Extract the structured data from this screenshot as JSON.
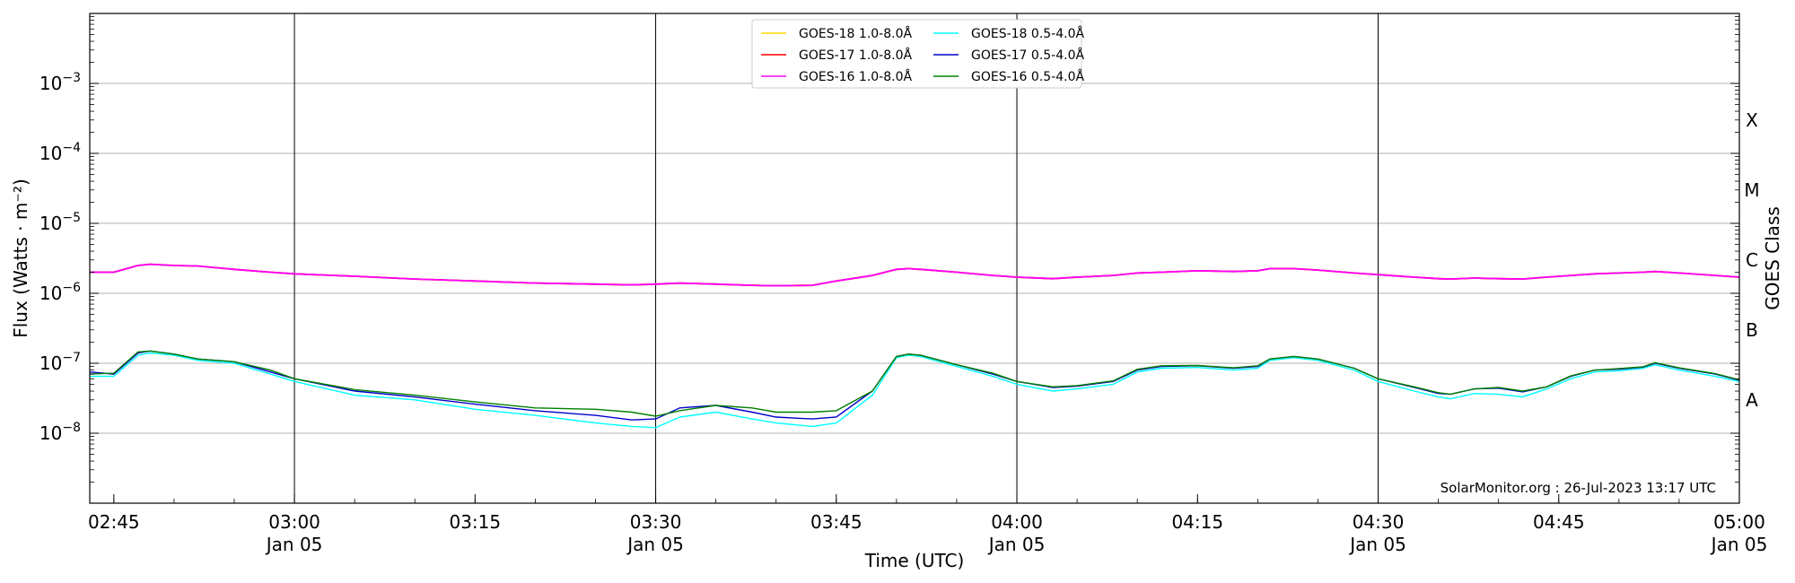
{
  "chart_data": {
    "type": "line",
    "xlabel": "Time (UTC)",
    "ylabel": "Flux (Watts · m⁻²)",
    "right_axis_label": "GOES Class",
    "credit": "SolarMonitor.org : 26-Jul-2023 13:17 UTC",
    "x_range": [
      "02:43",
      "05:00"
    ],
    "y_range": [
      1e-09,
      0.01
    ],
    "y_scale": "log",
    "grid": "horizontal at decades, vertical at half-hours",
    "legend_position": "top-center",
    "x_ticks": [
      {
        "time": "02:45",
        "label": "02:45",
        "sub": ""
      },
      {
        "time": "03:00",
        "label": "03:00",
        "sub": "Jan 05"
      },
      {
        "time": "03:15",
        "label": "03:15",
        "sub": ""
      },
      {
        "time": "03:30",
        "label": "03:30",
        "sub": "Jan 05"
      },
      {
        "time": "03:45",
        "label": "03:45",
        "sub": ""
      },
      {
        "time": "04:00",
        "label": "04:00",
        "sub": "Jan 05"
      },
      {
        "time": "04:15",
        "label": "04:15",
        "sub": ""
      },
      {
        "time": "04:30",
        "label": "04:30",
        "sub": "Jan 05"
      },
      {
        "time": "04:45",
        "label": "04:45",
        "sub": ""
      },
      {
        "time": "05:00",
        "label": "05:00",
        "sub": "Jan 05"
      }
    ],
    "y_ticks": [
      {
        "exp": -8,
        "label": "10",
        "sup": "−8"
      },
      {
        "exp": -7,
        "label": "10",
        "sup": "−7"
      },
      {
        "exp": -6,
        "label": "10",
        "sup": "−6"
      },
      {
        "exp": -5,
        "label": "10",
        "sup": "−5"
      },
      {
        "exp": -4,
        "label": "10",
        "sup": "−4"
      },
      {
        "exp": -3,
        "label": "10",
        "sup": "−3"
      }
    ],
    "goes_classes": [
      {
        "label": "A",
        "flux": 3e-08
      },
      {
        "label": "B",
        "flux": 3e-07
      },
      {
        "label": "C",
        "flux": 3e-06
      },
      {
        "label": "M",
        "flux": 3e-05
      },
      {
        "label": "X",
        "flux": 0.0003
      }
    ],
    "x": [
      "02:43",
      "02:45",
      "02:47",
      "02:48",
      "02:50",
      "02:52",
      "02:55",
      "02:58",
      "03:00",
      "03:05",
      "03:10",
      "03:15",
      "03:20",
      "03:25",
      "03:28",
      "03:30",
      "03:32",
      "03:35",
      "03:38",
      "03:40",
      "03:43",
      "03:45",
      "03:48",
      "03:50",
      "03:51",
      "03:52",
      "03:55",
      "03:58",
      "04:00",
      "04:03",
      "04:05",
      "04:08",
      "04:10",
      "04:12",
      "04:15",
      "04:18",
      "04:20",
      "04:21",
      "04:23",
      "04:25",
      "04:28",
      "04:30",
      "04:33",
      "04:35",
      "04:36",
      "04:38",
      "04:40",
      "04:42",
      "04:44",
      "04:46",
      "04:48",
      "04:50",
      "04:52",
      "04:53",
      "04:55",
      "04:58",
      "05:00"
    ],
    "series": [
      {
        "name": "GOES-18 1.0-8.0Å",
        "color": "#ffd700",
        "values": [
          2e-06,
          2e-06,
          2.5e-06,
          2.6e-06,
          2.5e-06,
          2.45e-06,
          2.2e-06,
          2e-06,
          1.9e-06,
          1.75e-06,
          1.6e-06,
          1.5e-06,
          1.4e-06,
          1.35e-06,
          1.32e-06,
          1.35e-06,
          1.4e-06,
          1.35e-06,
          1.3e-06,
          1.28e-06,
          1.3e-06,
          1.5e-06,
          1.8e-06,
          2.2e-06,
          2.25e-06,
          2.2e-06,
          2e-06,
          1.8e-06,
          1.7e-06,
          1.62e-06,
          1.7e-06,
          1.8e-06,
          1.95e-06,
          2e-06,
          2.1e-06,
          2.05e-06,
          2.1e-06,
          2.25e-06,
          2.25e-06,
          2.15e-06,
          1.95e-06,
          1.85e-06,
          1.7e-06,
          1.62e-06,
          1.6e-06,
          1.65e-06,
          1.62e-06,
          1.6e-06,
          1.7e-06,
          1.8e-06,
          1.9e-06,
          1.95e-06,
          2e-06,
          2.05e-06,
          1.95e-06,
          1.8e-06,
          1.7e-06
        ]
      },
      {
        "name": "GOES-17 1.0-8.0Å",
        "color": "#ff0000",
        "values": [
          2e-06,
          2e-06,
          2.5e-06,
          2.6e-06,
          2.5e-06,
          2.45e-06,
          2.2e-06,
          2e-06,
          1.9e-06,
          1.75e-06,
          1.6e-06,
          1.5e-06,
          1.4e-06,
          1.35e-06,
          1.32e-06,
          1.35e-06,
          1.4e-06,
          1.35e-06,
          1.3e-06,
          1.28e-06,
          1.3e-06,
          1.5e-06,
          1.8e-06,
          2.2e-06,
          2.25e-06,
          2.2e-06,
          2e-06,
          1.8e-06,
          1.7e-06,
          1.62e-06,
          1.7e-06,
          1.8e-06,
          1.95e-06,
          2e-06,
          2.1e-06,
          2.05e-06,
          2.1e-06,
          2.25e-06,
          2.25e-06,
          2.15e-06,
          1.95e-06,
          1.85e-06,
          1.7e-06,
          1.62e-06,
          1.6e-06,
          1.65e-06,
          1.62e-06,
          1.6e-06,
          1.7e-06,
          1.8e-06,
          1.9e-06,
          1.95e-06,
          2e-06,
          2.05e-06,
          1.95e-06,
          1.8e-06,
          1.7e-06
        ]
      },
      {
        "name": "GOES-16 1.0-8.0Å",
        "color": "#ff00ff",
        "values": [
          2e-06,
          2e-06,
          2.5e-06,
          2.6e-06,
          2.5e-06,
          2.45e-06,
          2.2e-06,
          2e-06,
          1.9e-06,
          1.75e-06,
          1.6e-06,
          1.5e-06,
          1.4e-06,
          1.35e-06,
          1.32e-06,
          1.35e-06,
          1.4e-06,
          1.35e-06,
          1.3e-06,
          1.28e-06,
          1.3e-06,
          1.5e-06,
          1.8e-06,
          2.2e-06,
          2.25e-06,
          2.2e-06,
          2e-06,
          1.8e-06,
          1.7e-06,
          1.62e-06,
          1.7e-06,
          1.8e-06,
          1.95e-06,
          2e-06,
          2.1e-06,
          2.05e-06,
          2.1e-06,
          2.25e-06,
          2.25e-06,
          2.15e-06,
          1.95e-06,
          1.85e-06,
          1.7e-06,
          1.62e-06,
          1.6e-06,
          1.65e-06,
          1.62e-06,
          1.6e-06,
          1.7e-06,
          1.8e-06,
          1.9e-06,
          1.95e-06,
          2e-06,
          2.05e-06,
          1.95e-06,
          1.8e-06,
          1.7e-06
        ]
      },
      {
        "name": "GOES-18 0.5-4.0Å",
        "color": "#00ffff",
        "values": [
          6.5e-08,
          6.5e-08,
          1.3e-07,
          1.4e-07,
          1.3e-07,
          1.1e-07,
          1e-07,
          7e-08,
          5.5e-08,
          3.5e-08,
          3e-08,
          2.2e-08,
          1.8e-08,
          1.4e-08,
          1.25e-08,
          1.2e-08,
          1.7e-08,
          2e-08,
          1.6e-08,
          1.4e-08,
          1.25e-08,
          1.4e-08,
          3.5e-08,
          1.2e-07,
          1.3e-07,
          1.25e-07,
          9e-08,
          6.5e-08,
          5e-08,
          4e-08,
          4.3e-08,
          5e-08,
          7.5e-08,
          8.5e-08,
          8.7e-08,
          8e-08,
          8.5e-08,
          1.1e-07,
          1.2e-07,
          1.1e-07,
          8e-08,
          5.5e-08,
          4e-08,
          3.3e-08,
          3.1e-08,
          3.7e-08,
          3.6e-08,
          3.3e-08,
          4.3e-08,
          6e-08,
          7.5e-08,
          7.8e-08,
          8.5e-08,
          9.5e-08,
          8e-08,
          6.5e-08,
          5.5e-08
        ]
      },
      {
        "name": "GOES-17 0.5-4.0Å",
        "color": "#0000cc",
        "values": [
          7.5e-08,
          7e-08,
          1.4e-07,
          1.5e-07,
          1.35e-07,
          1.15e-07,
          1.05e-07,
          7.5e-08,
          6e-08,
          4e-08,
          3.3e-08,
          2.6e-08,
          2.1e-08,
          1.8e-08,
          1.55e-08,
          1.6e-08,
          2.3e-08,
          2.5e-08,
          2e-08,
          1.7e-08,
          1.6e-08,
          1.7e-08,
          4e-08,
          1.25e-07,
          1.35e-07,
          1.3e-07,
          9.5e-08,
          7e-08,
          5.5e-08,
          4.5e-08,
          4.7e-08,
          5.5e-08,
          8e-08,
          9e-08,
          9.2e-08,
          8.5e-08,
          9e-08,
          1.15e-07,
          1.25e-07,
          1.15e-07,
          8.5e-08,
          6e-08,
          4.5e-08,
          3.7e-08,
          3.6e-08,
          4.3e-08,
          4.4e-08,
          3.9e-08,
          4.6e-08,
          6.5e-08,
          8e-08,
          8.2e-08,
          8.8e-08,
          1e-07,
          8.5e-08,
          7e-08,
          5.7e-08
        ]
      },
      {
        "name": "GOES-16 0.5-4.0Å",
        "color": "#008000",
        "values": [
          7e-08,
          7.2e-08,
          1.45e-07,
          1.5e-07,
          1.35e-07,
          1.15e-07,
          1.05e-07,
          8e-08,
          6e-08,
          4.2e-08,
          3.5e-08,
          2.8e-08,
          2.3e-08,
          2.2e-08,
          2e-08,
          1.75e-08,
          2.1e-08,
          2.5e-08,
          2.3e-08,
          2e-08,
          2e-08,
          2.1e-08,
          4e-08,
          1.25e-07,
          1.35e-07,
          1.3e-07,
          9.5e-08,
          7.2e-08,
          5.5e-08,
          4.6e-08,
          4.8e-08,
          5.6e-08,
          8.2e-08,
          9.2e-08,
          9.3e-08,
          8.6e-08,
          9.2e-08,
          1.15e-07,
          1.25e-07,
          1.15e-07,
          8.5e-08,
          6e-08,
          4.6e-08,
          3.8e-08,
          3.6e-08,
          4.3e-08,
          4.5e-08,
          4e-08,
          4.6e-08,
          6.6e-08,
          8e-08,
          8.4e-08,
          8.9e-08,
          1.02e-07,
          8.6e-08,
          7.1e-08,
          5.8e-08
        ]
      }
    ]
  }
}
